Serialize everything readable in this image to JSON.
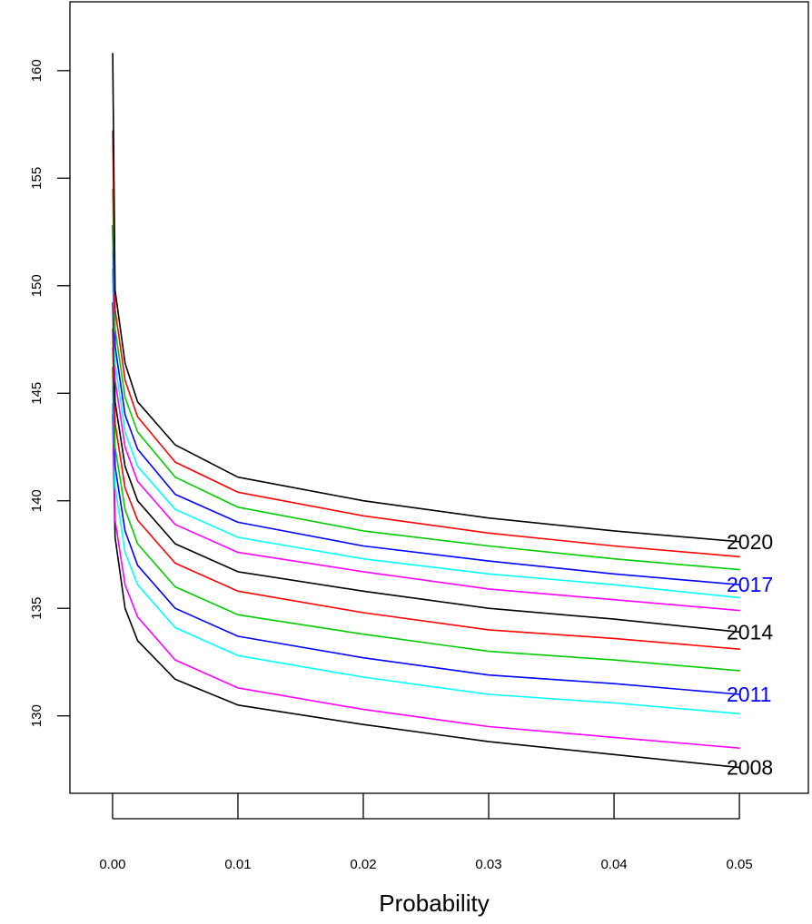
{
  "chart_data": {
    "type": "line",
    "xlabel": "Probability",
    "ylabel": "",
    "title": "",
    "xlim": [
      -0.0034,
      0.0555
    ],
    "ylim": [
      126.4,
      163.2
    ],
    "x_ticks": [
      0.0,
      0.01,
      0.02,
      0.03,
      0.04,
      0.05
    ],
    "x_tick_labels": [
      "0.00",
      "0.01",
      "0.02",
      "0.03",
      "0.04",
      "0.05"
    ],
    "y_ticks": [
      130,
      135,
      140,
      145,
      150,
      155,
      160
    ],
    "y_tick_labels": [
      "130",
      "135",
      "140",
      "145",
      "150",
      "155",
      "160"
    ],
    "grid": false,
    "legend": "none",
    "x": [
      1e-05,
      0.0002,
      0.001,
      0.002,
      0.005,
      0.01,
      0.02,
      0.03,
      0.04,
      0.05
    ],
    "series": [
      {
        "name": "2008",
        "color": "#000000",
        "values": [
          144.0,
          138.3,
          135.0,
          133.5,
          131.7,
          130.5,
          129.6,
          128.8,
          128.2,
          127.6
        ]
      },
      {
        "name": "",
        "color": "#ff00ff",
        "values": [
          144.5,
          139.1,
          136.1,
          134.6,
          132.6,
          131.3,
          130.3,
          129.5,
          129.0,
          128.5
        ]
      },
      {
        "name": "",
        "color": "#00ffff",
        "values": [
          145.3,
          140.7,
          137.6,
          136.1,
          134.1,
          132.8,
          131.8,
          131.0,
          130.6,
          130.1
        ]
      },
      {
        "name": "2011",
        "color": "#0000ff",
        "values": [
          146.2,
          141.6,
          138.6,
          137.0,
          135.0,
          133.7,
          132.7,
          131.9,
          131.5,
          131.0
        ]
      },
      {
        "name": "",
        "color": "#00cd00",
        "values": [
          147.1,
          142.5,
          139.6,
          138.0,
          136.0,
          134.7,
          133.8,
          133.0,
          132.6,
          132.1
        ]
      },
      {
        "name": "",
        "color": "#ff0000",
        "values": [
          148.0,
          143.6,
          140.6,
          139.1,
          137.1,
          135.8,
          134.8,
          134.0,
          133.6,
          133.1
        ]
      },
      {
        "name": "2014",
        "color": "#000000",
        "values": [
          149.2,
          144.6,
          141.6,
          140.0,
          138.0,
          136.7,
          135.8,
          135.0,
          134.5,
          133.9
        ]
      },
      {
        "name": "",
        "color": "#ff00ff",
        "values": [
          150.8,
          145.6,
          142.5,
          140.9,
          138.9,
          137.6,
          136.7,
          135.9,
          135.4,
          134.9
        ]
      },
      {
        "name": "",
        "color": "#00ffff",
        "values": [
          151.6,
          146.4,
          143.2,
          141.6,
          139.6,
          138.3,
          137.3,
          136.6,
          136.1,
          135.5
        ]
      },
      {
        "name": "2017",
        "color": "#0000ff",
        "values": [
          152.8,
          147.2,
          144.0,
          142.4,
          140.3,
          139.0,
          137.9,
          137.2,
          136.6,
          136.1
        ]
      },
      {
        "name": "",
        "color": "#00cd00",
        "values": [
          154.5,
          148.0,
          144.8,
          143.2,
          141.1,
          139.7,
          138.6,
          137.9,
          137.3,
          136.8
        ]
      },
      {
        "name": "",
        "color": "#ff0000",
        "values": [
          157.2,
          148.9,
          145.6,
          143.9,
          141.8,
          140.4,
          139.3,
          138.5,
          137.9,
          137.4
        ]
      },
      {
        "name": "2020",
        "color": "#000000",
        "values": [
          160.8,
          149.8,
          146.4,
          144.6,
          142.6,
          141.1,
          140.0,
          139.2,
          138.6,
          138.1
        ]
      }
    ],
    "annotations": [
      {
        "text": "2020",
        "color": "#000000",
        "at_value": 138.1
      },
      {
        "text": "2017",
        "color": "#0000ff",
        "at_value": 136.1
      },
      {
        "text": "2014",
        "color": "#000000",
        "at_value": 133.9
      },
      {
        "text": "2011",
        "color": "#0000ff",
        "at_value": 131.0
      },
      {
        "text": "2008",
        "color": "#000000",
        "at_value": 127.6
      }
    ]
  }
}
